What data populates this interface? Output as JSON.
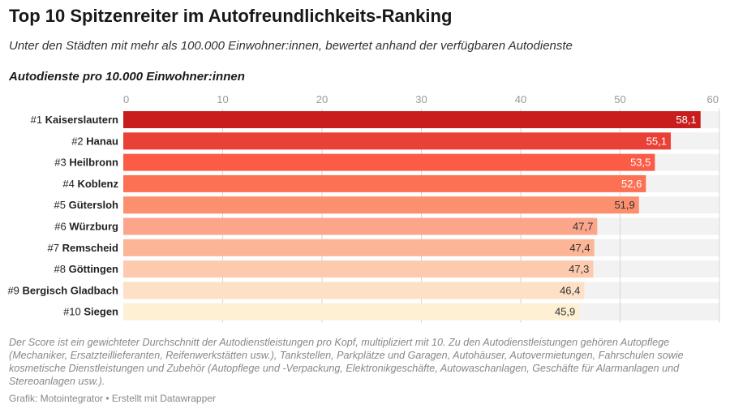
{
  "title": "Top 10 Spitzenreiter im Autofreundlichkeits-Ranking",
  "subtitle": "Unter den Städten mit mehr als 100.000 Einwohner:innen, bewertet anhand der verfügbaren Autodienste",
  "footnote": "Der Score ist ein gewichteter Durchschnitt der Autodienstleistungen pro Kopf, multipliziert mit 10. Zu den Autodienstleistungen gehören Autopflege (Mechaniker, Ersatzteillieferanten, Reifenwerkstätten usw.), Tankstellen, Parkplätze und Garagen, Autohäuser, Autovermietungen, Fahrschulen sowie kosmetische Dienstleistungen und Zubehör (Autopflege und -Verpackung, Elektronikgeschäfte, Autowaschanlagen, Geschäfte für Alarmanlagen und Stereoanlagen usw.).",
  "credit": "Grafik: Motointegrator • Erstellt mit Datawrapper",
  "chart_data": {
    "type": "bar",
    "orientation": "horizontal",
    "xlabel": "Autodienste pro 10.000 Einwohner:innen",
    "xlim": [
      0,
      60
    ],
    "xticks": [
      0,
      10,
      20,
      30,
      40,
      50,
      60
    ],
    "grid": true,
    "ranks": [
      "#1",
      "#2",
      "#3",
      "#4",
      "#5",
      "#6",
      "#7",
      "#8",
      "#9",
      "#10"
    ],
    "categories": [
      "Kaiserslautern",
      "Hanau",
      "Heilbronn",
      "Koblenz",
      "Gütersloh",
      "Würzburg",
      "Remscheid",
      "Göttingen",
      "Bergisch Gladbach",
      "Siegen"
    ],
    "values": [
      58.1,
      55.1,
      53.5,
      52.6,
      51.9,
      47.7,
      47.4,
      47.3,
      46.4,
      45.9
    ],
    "value_labels": [
      "58,1",
      "55,1",
      "53,5",
      "52,6",
      "51,9",
      "47,7",
      "47,4",
      "47,3",
      "46,4",
      "45,9"
    ],
    "colors": [
      "#c71e1d",
      "#ea4137",
      "#fc5b46",
      "#fc7153",
      "#fb8f6e",
      "#fba68a",
      "#fcb596",
      "#fdcaad",
      "#fde0c5",
      "#fef0d2"
    ],
    "background_color": "#f2f2f2"
  }
}
